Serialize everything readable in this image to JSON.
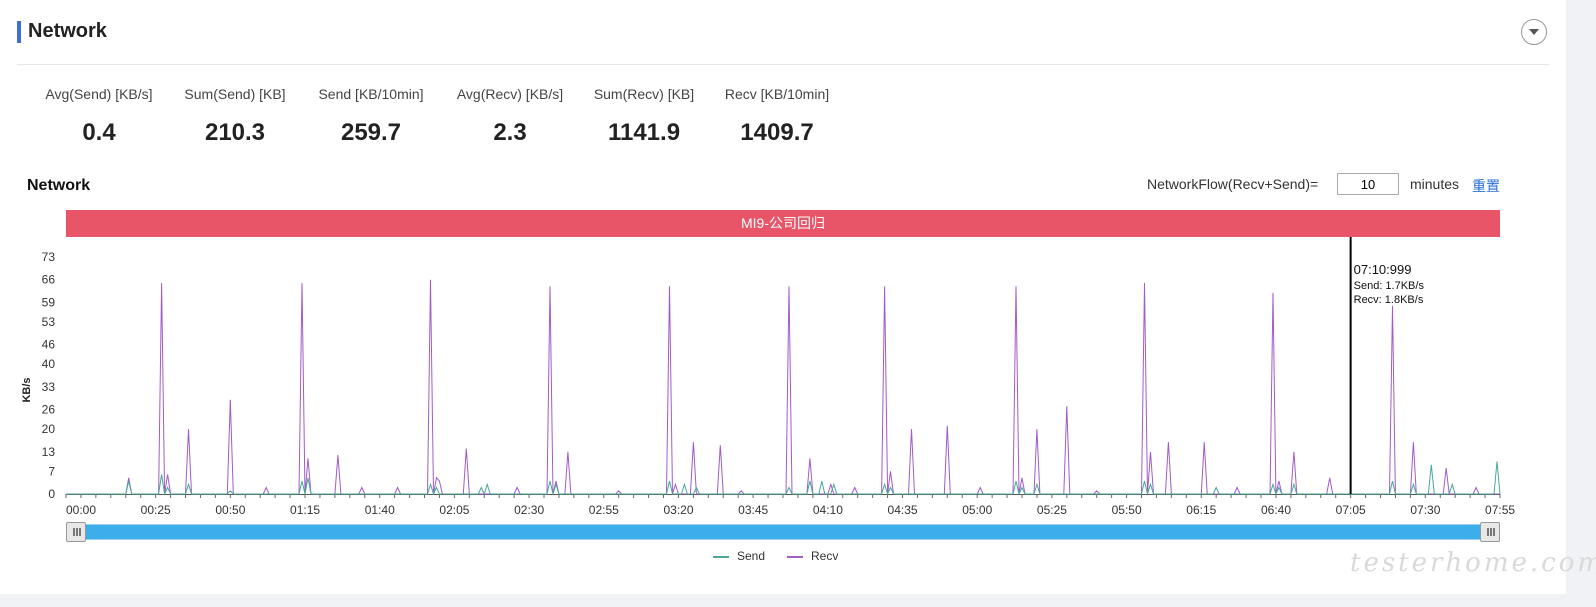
{
  "section": {
    "title": "Network"
  },
  "stats": [
    {
      "label": "Avg(Send) [KB/s]",
      "value": "0.4"
    },
    {
      "label": "Sum(Send) [KB]",
      "value": "210.3"
    },
    {
      "label": "Send [KB/10min]",
      "value": "259.7"
    },
    {
      "label": "Avg(Recv) [KB/s]",
      "value": "2.3"
    },
    {
      "label": "Sum(Recv) [KB]",
      "value": "1141.9"
    },
    {
      "label": "Recv [KB/10min]",
      "value": "1409.7"
    }
  ],
  "controls": {
    "flow_label": "NetworkFlow(Recv+Send)=",
    "flow_value": "10",
    "flow_unit": "minutes",
    "reset_label": "重置"
  },
  "watermark": "testerhome.com",
  "colors": {
    "send": "#4aa899",
    "recv": "#a15cc8",
    "banner": "#e85468",
    "accent": "#3e6fd8",
    "slider": "#3daee9"
  },
  "chart_data": {
    "type": "line",
    "title": "Network",
    "banner": "MI9-公司回归",
    "ylabel": "KB/s",
    "xlabel": "",
    "xlim": [
      0,
      480
    ],
    "ylim": [
      0,
      73
    ],
    "yticks": [
      0,
      7,
      13,
      20,
      26,
      33,
      40,
      46,
      53,
      59,
      66,
      73
    ],
    "xticks": [
      {
        "t": 0,
        "label": "00:00"
      },
      {
        "t": 25,
        "label": "00:25"
      },
      {
        "t": 50,
        "label": "00:50"
      },
      {
        "t": 75,
        "label": "01:15"
      },
      {
        "t": 100,
        "label": "01:40"
      },
      {
        "t": 125,
        "label": "02:05"
      },
      {
        "t": 150,
        "label": "02:30"
      },
      {
        "t": 175,
        "label": "02:55"
      },
      {
        "t": 200,
        "label": "03:20"
      },
      {
        "t": 225,
        "label": "03:45"
      },
      {
        "t": 250,
        "label": "04:10"
      },
      {
        "t": 275,
        "label": "04:35"
      },
      {
        "t": 300,
        "label": "05:00"
      },
      {
        "t": 325,
        "label": "05:25"
      },
      {
        "t": 350,
        "label": "05:50"
      },
      {
        "t": 375,
        "label": "06:15"
      },
      {
        "t": 400,
        "label": "06:40"
      },
      {
        "t": 425,
        "label": "07:05"
      },
      {
        "t": 450,
        "label": "07:30"
      },
      {
        "t": 475,
        "label": "07:55"
      }
    ],
    "grid": false,
    "legend": "bottom",
    "series": [
      {
        "name": "Recv",
        "points": [
          [
            0,
            0
          ],
          [
            20,
            0
          ],
          [
            21,
            5
          ],
          [
            22,
            0
          ],
          [
            31,
            0
          ],
          [
            32,
            65
          ],
          [
            33,
            0
          ],
          [
            34,
            6
          ],
          [
            35,
            0
          ],
          [
            40,
            0
          ],
          [
            41,
            20
          ],
          [
            42,
            0
          ],
          [
            54,
            0
          ],
          [
            55,
            29
          ],
          [
            56,
            0
          ],
          [
            66,
            0
          ],
          [
            67,
            2
          ],
          [
            68,
            0
          ],
          [
            78,
            0
          ],
          [
            79,
            65
          ],
          [
            80,
            0
          ],
          [
            81,
            11
          ],
          [
            82,
            0
          ],
          [
            90,
            0
          ],
          [
            91,
            12
          ],
          [
            92,
            0
          ],
          [
            98,
            0
          ],
          [
            99,
            2
          ],
          [
            100,
            0
          ],
          [
            110,
            0
          ],
          [
            111,
            2
          ],
          [
            112,
            0
          ],
          [
            121,
            0
          ],
          [
            122,
            66
          ],
          [
            123,
            0
          ],
          [
            124,
            5
          ],
          [
            125,
            4
          ],
          [
            126,
            0
          ],
          [
            133,
            0
          ],
          [
            134,
            14
          ],
          [
            135,
            0
          ],
          [
            150,
            0
          ],
          [
            151,
            2
          ],
          [
            152,
            0
          ],
          [
            161,
            0
          ],
          [
            162,
            64
          ],
          [
            163,
            0
          ],
          [
            164,
            4
          ],
          [
            165,
            0
          ],
          [
            167,
            0
          ],
          [
            168,
            13
          ],
          [
            169,
            0
          ],
          [
            184,
            0
          ],
          [
            185,
            1
          ],
          [
            186,
            0
          ],
          [
            201,
            0
          ],
          [
            202,
            64
          ],
          [
            203,
            0
          ],
          [
            204,
            3
          ],
          [
            205,
            0
          ],
          [
            209,
            0
          ],
          [
            210,
            16
          ],
          [
            211,
            0
          ],
          [
            218,
            0
          ],
          [
            219,
            15
          ],
          [
            220,
            0
          ],
          [
            225,
            0
          ],
          [
            226,
            1
          ],
          [
            227,
            0
          ],
          [
            241,
            0
          ],
          [
            242,
            64
          ],
          [
            243,
            0
          ],
          [
            248,
            0
          ],
          [
            249,
            11
          ],
          [
            250,
            0
          ],
          [
            255,
            0
          ],
          [
            256,
            3
          ],
          [
            257,
            0
          ],
          [
            263,
            0
          ],
          [
            264,
            2
          ],
          [
            265,
            0
          ],
          [
            273,
            0
          ],
          [
            274,
            64
          ],
          [
            275,
            0
          ],
          [
            276,
            7
          ],
          [
            277,
            0
          ],
          [
            282,
            0
          ],
          [
            283,
            20
          ],
          [
            284,
            0
          ],
          [
            294,
            0
          ],
          [
            295,
            21
          ],
          [
            296,
            0
          ],
          [
            305,
            0
          ],
          [
            306,
            2
          ],
          [
            307,
            0
          ],
          [
            317,
            0
          ],
          [
            318,
            64
          ],
          [
            319,
            0
          ],
          [
            320,
            5
          ],
          [
            321,
            0
          ],
          [
            324,
            0
          ],
          [
            325,
            20
          ],
          [
            326,
            0
          ],
          [
            334,
            0
          ],
          [
            335,
            27
          ],
          [
            336,
            0
          ],
          [
            344,
            0
          ],
          [
            345,
            1
          ],
          [
            346,
            0
          ],
          [
            360,
            0
          ],
          [
            361,
            65
          ],
          [
            362,
            0
          ],
          [
            363,
            13
          ],
          [
            364,
            0
          ],
          [
            368,
            0
          ],
          [
            369,
            16
          ],
          [
            370,
            0
          ],
          [
            380,
            0
          ],
          [
            381,
            16
          ],
          [
            382,
            0
          ],
          [
            391,
            0
          ],
          [
            392,
            2
          ],
          [
            393,
            0
          ],
          [
            403,
            0
          ],
          [
            404,
            62
          ],
          [
            405,
            0
          ],
          [
            406,
            4
          ],
          [
            407,
            0
          ],
          [
            410,
            0
          ],
          [
            411,
            13
          ],
          [
            412,
            0
          ],
          [
            422,
            0
          ],
          [
            423,
            5
          ],
          [
            424,
            0
          ],
          [
            443,
            0
          ],
          [
            444,
            58
          ],
          [
            445,
            0
          ],
          [
            450,
            0
          ],
          [
            451,
            16
          ],
          [
            452,
            0
          ],
          [
            461,
            0
          ],
          [
            462,
            8
          ],
          [
            463,
            0
          ],
          [
            471,
            0
          ],
          [
            472,
            2
          ],
          [
            473,
            0
          ],
          [
            480,
            0
          ]
        ]
      },
      {
        "name": "Send",
        "points": [
          [
            0,
            0
          ],
          [
            20,
            0
          ],
          [
            21,
            4
          ],
          [
            22,
            0
          ],
          [
            31,
            0
          ],
          [
            32,
            6
          ],
          [
            33,
            0
          ],
          [
            34,
            2
          ],
          [
            35,
            0
          ],
          [
            40,
            0
          ],
          [
            41,
            3
          ],
          [
            42,
            0
          ],
          [
            54,
            0
          ],
          [
            55,
            1
          ],
          [
            56,
            0
          ],
          [
            78,
            0
          ],
          [
            79,
            4
          ],
          [
            80,
            0
          ],
          [
            81,
            5
          ],
          [
            82,
            0
          ],
          [
            121,
            0
          ],
          [
            122,
            3
          ],
          [
            123,
            0
          ],
          [
            124,
            2
          ],
          [
            125,
            0
          ],
          [
            138,
            0
          ],
          [
            139,
            2
          ],
          [
            140,
            0
          ],
          [
            141,
            3
          ],
          [
            142,
            0
          ],
          [
            161,
            0
          ],
          [
            162,
            4
          ],
          [
            163,
            0
          ],
          [
            164,
            3
          ],
          [
            165,
            0
          ],
          [
            201,
            0
          ],
          [
            202,
            4
          ],
          [
            203,
            0
          ],
          [
            206,
            0
          ],
          [
            207,
            3
          ],
          [
            208,
            0
          ],
          [
            210,
            0
          ],
          [
            211,
            2
          ],
          [
            212,
            0
          ],
          [
            241,
            0
          ],
          [
            242,
            2
          ],
          [
            243,
            0
          ],
          [
            248,
            0
          ],
          [
            249,
            4
          ],
          [
            250,
            0
          ],
          [
            252,
            0
          ],
          [
            253,
            4
          ],
          [
            254,
            0
          ],
          [
            256,
            0
          ],
          [
            257,
            3
          ],
          [
            258,
            0
          ],
          [
            273,
            0
          ],
          [
            274,
            3
          ],
          [
            275,
            0
          ],
          [
            276,
            2
          ],
          [
            277,
            0
          ],
          [
            317,
            0
          ],
          [
            318,
            4
          ],
          [
            319,
            0
          ],
          [
            320,
            2
          ],
          [
            321,
            0
          ],
          [
            324,
            0
          ],
          [
            325,
            3
          ],
          [
            326,
            0
          ],
          [
            360,
            0
          ],
          [
            361,
            4
          ],
          [
            362,
            0
          ],
          [
            363,
            3
          ],
          [
            364,
            0
          ],
          [
            384,
            0
          ],
          [
            385,
            2
          ],
          [
            386,
            0
          ],
          [
            403,
            0
          ],
          [
            404,
            3
          ],
          [
            405,
            0
          ],
          [
            406,
            2
          ],
          [
            407,
            0
          ],
          [
            410,
            0
          ],
          [
            411,
            3
          ],
          [
            412,
            0
          ],
          [
            443,
            0
          ],
          [
            444,
            4
          ],
          [
            445,
            0
          ],
          [
            450,
            0
          ],
          [
            451,
            3
          ],
          [
            452,
            0
          ],
          [
            456,
            0
          ],
          [
            457,
            9
          ],
          [
            458,
            0
          ],
          [
            463,
            0
          ],
          [
            464,
            3
          ],
          [
            465,
            0
          ],
          [
            478,
            0
          ],
          [
            479,
            10
          ],
          [
            480,
            0
          ]
        ]
      }
    ],
    "cursor": {
      "time": "07:10:999",
      "send": "Send: 1.7KB/s",
      "recv": "Recv: 1.8KB/s",
      "t": 430
    },
    "slider": {
      "start": 0,
      "end": 1
    }
  }
}
